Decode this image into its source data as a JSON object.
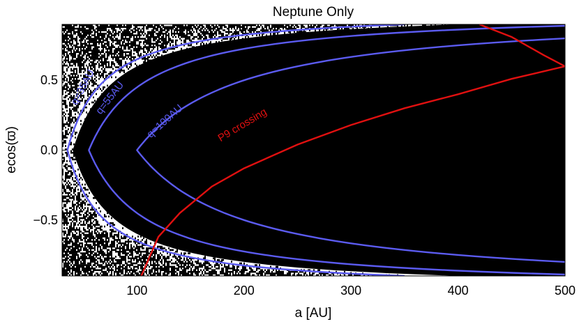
{
  "chart_data": {
    "type": "heatmap",
    "title": "Neptune Only",
    "xlabel": "a [AU]",
    "ylabel": "ecos(ϖ)",
    "xlim": [
      30,
      500
    ],
    "ylim": [
      -0.9,
      0.9
    ],
    "x_ticks": [
      100,
      200,
      300,
      400,
      500
    ],
    "y_ticks": [
      -0.5,
      0.0,
      0.5
    ],
    "x_tick_labels": [
      "100",
      "200",
      "300",
      "400",
      "500"
    ],
    "y_tick_labels": [
      "−0.5",
      "0.0",
      "0.5"
    ],
    "background_colors": {
      "filled": "#000000",
      "empty": "#ffffff"
    },
    "series": [
      {
        "label": "q=35AU",
        "q": 35,
        "color": "#5b5bf0",
        "label_at": {
          "a": 52,
          "e": 0.44
        }
      },
      {
        "label": "q=55AU",
        "q": 55,
        "color": "#5b5bf0",
        "label_at": {
          "a": 77,
          "e": 0.36
        }
      },
      {
        "label": "q=100AU",
        "q": 100,
        "color": "#5b5bf0",
        "label_at": {
          "a": 128,
          "e": 0.19
        }
      },
      {
        "label": "P9 crossing",
        "color": "#e01010",
        "x": [
          104,
          120,
          140,
          170,
          200,
          250,
          300,
          350,
          400,
          450,
          500
        ],
        "y": [
          -0.9,
          -0.62,
          -0.45,
          -0.26,
          -0.13,
          0.04,
          0.18,
          0.3,
          0.4,
          0.51,
          0.6
        ],
        "label_at": {
          "a": 200,
          "e": 0.16
        }
      },
      {
        "label": "",
        "color": "#e01010",
        "x": [
          420,
          450,
          480,
          500
        ],
        "y": [
          0.9,
          0.81,
          0.68,
          0.6
        ]
      }
    ]
  }
}
